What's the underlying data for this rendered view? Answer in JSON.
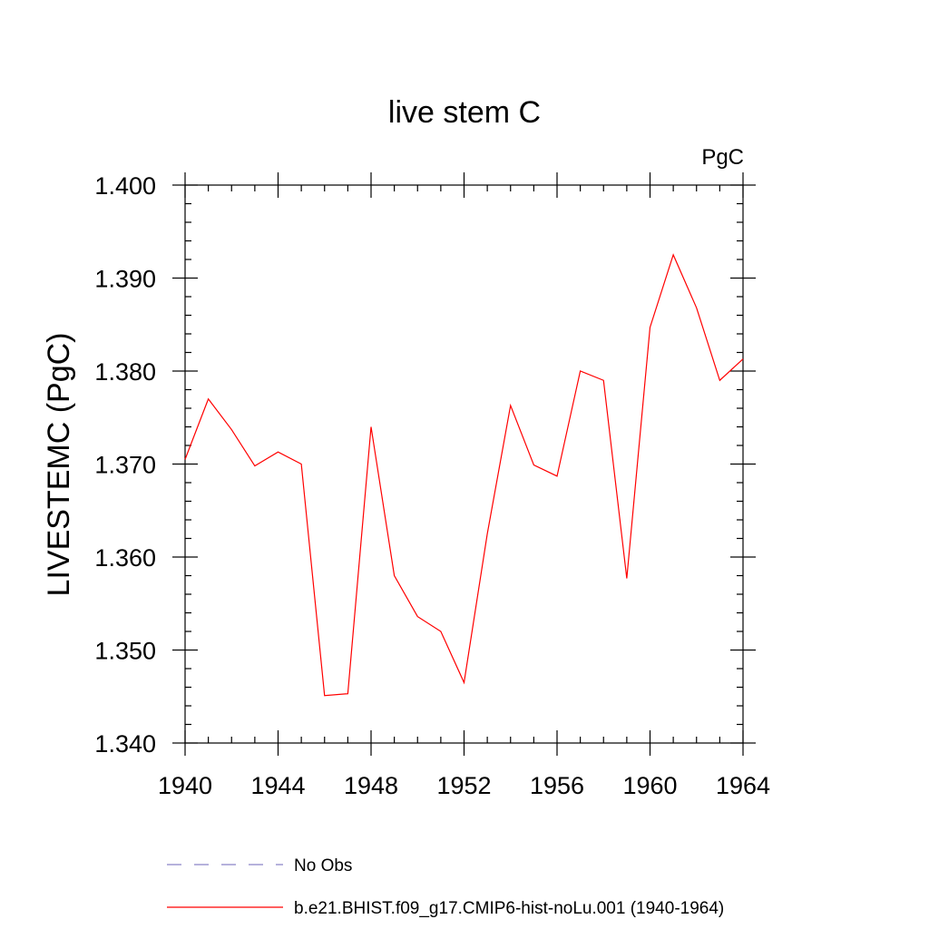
{
  "chart_data": {
    "type": "line",
    "title": "live stem C",
    "units_label": "PgC",
    "ylabel": "LIVESTEMC  (PgC)",
    "xlabel": "",
    "xlim": [
      1940,
      1964
    ],
    "ylim": [
      1.34,
      1.4
    ],
    "x_ticks": [
      1940,
      1944,
      1948,
      1952,
      1956,
      1960,
      1964
    ],
    "y_ticks": [
      "1.340",
      "1.350",
      "1.360",
      "1.370",
      "1.380",
      "1.390",
      "1.400"
    ],
    "grid": false,
    "legend_position": "bottom",
    "series": [
      {
        "name": "No Obs",
        "style": "dashed",
        "color": "#8a84c6",
        "x": [],
        "values": []
      },
      {
        "name": "b.e21.BHIST.f09_g17.CMIP6-hist-noLu.001 (1940-1964)",
        "style": "solid",
        "color": "#ff0000",
        "x": [
          1940,
          1941,
          1942,
          1943,
          1944,
          1945,
          1946,
          1947,
          1948,
          1949,
          1950,
          1951,
          1952,
          1953,
          1954,
          1955,
          1956,
          1957,
          1958,
          1959,
          1960,
          1961,
          1962,
          1963,
          1964
        ],
        "values": [
          1.3705,
          1.377,
          1.3737,
          1.3698,
          1.3713,
          1.37,
          1.3451,
          1.3453,
          1.374,
          1.358,
          1.3536,
          1.352,
          1.3465,
          1.3625,
          1.3763,
          1.3699,
          1.3687,
          1.38,
          1.379,
          1.3577,
          1.3847,
          1.3925,
          1.3868,
          1.379,
          1.3813
        ]
      }
    ]
  }
}
